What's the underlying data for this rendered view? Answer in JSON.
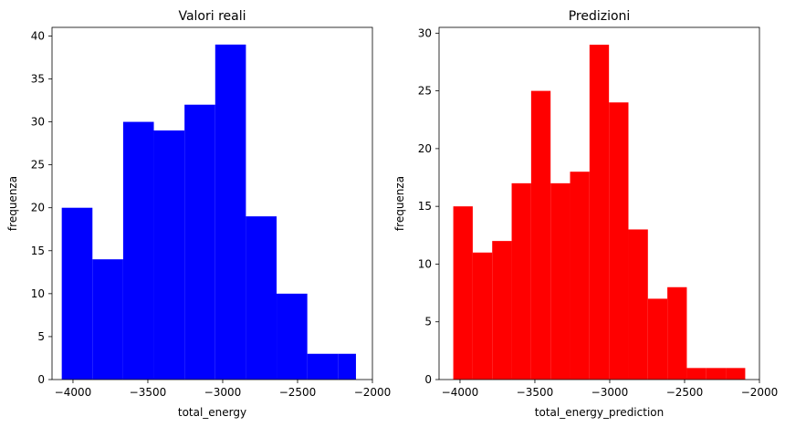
{
  "chart_data": [
    {
      "type": "bar",
      "title": "Valori reali",
      "xlabel": "total_energy",
      "ylabel": "frequenza",
      "color": "#0000ff",
      "xlim": [
        -4140,
        -2000
      ],
      "ylim": [
        0,
        41
      ],
      "xticks": [
        -4000,
        -3500,
        -3000,
        -2500,
        -2000
      ],
      "xtick_labels": [
        "−4000",
        "−3500",
        "−3000",
        "−2500",
        "−2000"
      ],
      "yticks": [
        0,
        5,
        10,
        15,
        20,
        25,
        30,
        35,
        40
      ],
      "bins": [
        {
          "x0": -4075,
          "x1": -3870,
          "count": 20
        },
        {
          "x0": -3870,
          "x1": -3665,
          "count": 14
        },
        {
          "x0": -3665,
          "x1": -3460,
          "count": 30
        },
        {
          "x0": -3460,
          "x1": -3255,
          "count": 29
        },
        {
          "x0": -3255,
          "x1": -3050,
          "count": 32
        },
        {
          "x0": -3050,
          "x1": -2845,
          "count": 39
        },
        {
          "x0": -2845,
          "x1": -2640,
          "count": 19
        },
        {
          "x0": -2640,
          "x1": -2435,
          "count": 10
        },
        {
          "x0": -2435,
          "x1": -2230,
          "count": 3
        },
        {
          "x0": -2230,
          "x1": -2110,
          "count": 3
        }
      ]
    },
    {
      "type": "bar",
      "title": "Predizioni",
      "xlabel": "total_energy_prediction",
      "ylabel": "frequenza",
      "color": "#ff0000",
      "xlim": [
        -4140,
        -2000
      ],
      "ylim": [
        0,
        30.5
      ],
      "xticks": [
        -4000,
        -3500,
        -3000,
        -2500,
        -2000
      ],
      "xtick_labels": [
        "−4000",
        "−3500",
        "−3000",
        "−2500",
        "−2000"
      ],
      "yticks": [
        0,
        5,
        10,
        15,
        20,
        25,
        30
      ],
      "bins": [
        {
          "x0": -4045,
          "x1": -3915,
          "count": 15
        },
        {
          "x0": -3915,
          "x1": -3785,
          "count": 11
        },
        {
          "x0": -3785,
          "x1": -3655,
          "count": 12
        },
        {
          "x0": -3655,
          "x1": -3525,
          "count": 17
        },
        {
          "x0": -3525,
          "x1": -3395,
          "count": 25
        },
        {
          "x0": -3395,
          "x1": -3265,
          "count": 17
        },
        {
          "x0": -3265,
          "x1": -3135,
          "count": 18
        },
        {
          "x0": -3135,
          "x1": -3005,
          "count": 29
        },
        {
          "x0": -3005,
          "x1": -2875,
          "count": 24
        },
        {
          "x0": -2875,
          "x1": -2745,
          "count": 13
        },
        {
          "x0": -2745,
          "x1": -2615,
          "count": 7
        },
        {
          "x0": -2615,
          "x1": -2485,
          "count": 8
        },
        {
          "x0": -2485,
          "x1": -2355,
          "count": 1
        },
        {
          "x0": -2355,
          "x1": -2225,
          "count": 1
        },
        {
          "x0": -2225,
          "x1": -2095,
          "count": 1
        }
      ]
    }
  ]
}
